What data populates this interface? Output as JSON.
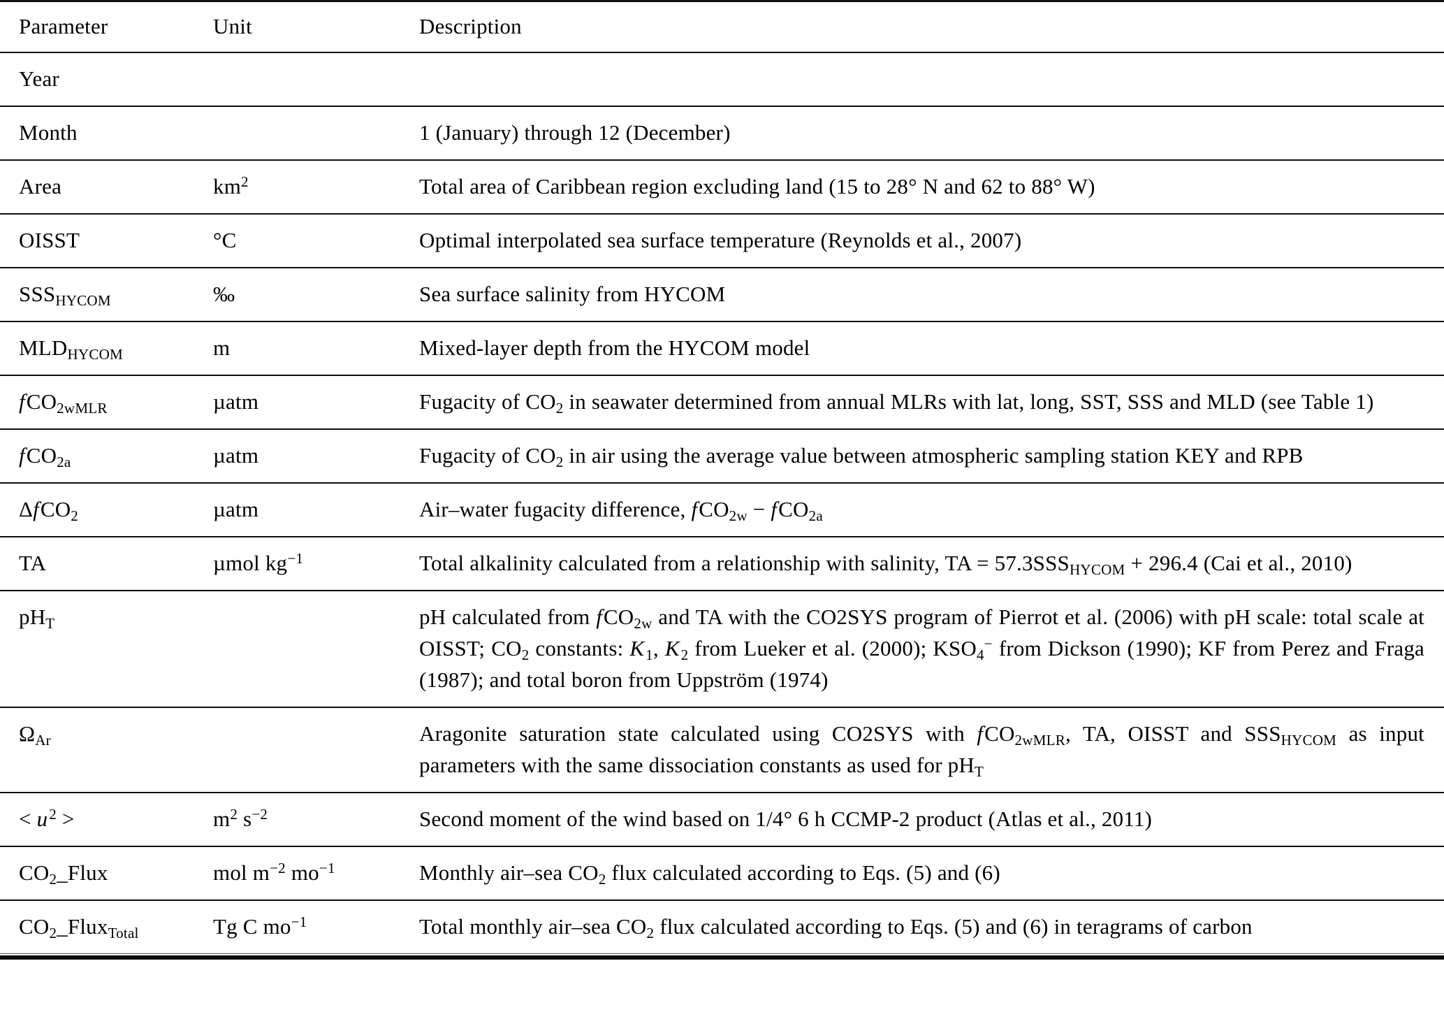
{
  "table": {
    "columns": [
      "Parameter",
      "Unit",
      "Description"
    ],
    "rows": [
      {
        "param": "Year",
        "unit": "",
        "desc": ""
      },
      {
        "param": "Month",
        "unit": "",
        "desc": "1 (January) through 12 (December)"
      },
      {
        "param": "Area",
        "unit": "km<sup>2</sup>",
        "desc": "Total area of Caribbean region excluding land (15 to 28° N and 62 to 88° W)"
      },
      {
        "param": "OISST",
        "unit": "°C",
        "desc": "Optimal interpolated sea surface temperature (Reynolds et al., 2007)"
      },
      {
        "param": "SSS<sub>HYCOM</sub>",
        "unit": "‰",
        "desc": "Sea surface salinity from HYCOM"
      },
      {
        "param": "MLD<sub>HYCOM</sub>",
        "unit": "m",
        "desc": "Mixed-layer depth from the HYCOM model"
      },
      {
        "param": "<i>f</i>CO<sub>2wMLR</sub>",
        "unit": "µatm",
        "desc": "Fugacity of CO<sub>2</sub> in seawater determined from annual MLRs with lat, long, SST, SSS and MLD (see Table 1)"
      },
      {
        "param": "<i>f</i>CO<sub>2a</sub>",
        "unit": "µatm",
        "desc": "Fugacity of CO<sub>2</sub> in air using the average value between atmospheric sampling station KEY and RPB"
      },
      {
        "param": "Δ<i>f</i>CO<sub>2</sub>",
        "unit": "µatm",
        "desc": "Air–water fugacity difference, <i>f</i>CO<sub>2w</sub> − <i>f</i>CO<sub>2a</sub>"
      },
      {
        "param": "TA",
        "unit": "µmol kg<sup>−1</sup>",
        "desc": "Total alkalinity calculated from a relationship with salinity, TA = 57.3SSS<sub>HYCOM</sub> + 296.4 (Cai et al., 2010)"
      },
      {
        "param": "pH<sub>T</sub>",
        "unit": "",
        "desc": "pH calculated from <i>f</i>CO<sub>2w</sub> and TA with the CO2SYS program of Pierrot et al. (2006) with pH scale: total scale at OISST; CO<sub>2</sub> constants: <i>K</i><sub>1</sub>, <i>K</i><sub>2</sub> from Lueker et al. (2000); KSO<sub>4</sub><sup>−</sup> from Dickson (1990); KF from Perez and Fraga (1987); and total boron from Uppström (1974)"
      },
      {
        "param": "Ω<sub>Ar</sub>",
        "unit": "",
        "desc": "Aragonite saturation state calculated using CO2SYS with <i>f</i>CO<sub>2wMLR</sub>, TA, OISST and SSS<sub>HYCOM</sub> as input parameters with the same dissociation constants as used for pH<sub>T</sub>"
      },
      {
        "param": "&lt; <i>u</i><sup>2</sup> &gt;",
        "unit": "m<sup>2</sup> s<sup>−2</sup>",
        "desc": "Second moment of the wind based on 1/4° 6 h CCMP-2 product (Atlas et al., 2011)"
      },
      {
        "param": "CO<sub>2</sub>_Flux",
        "unit": "mol m<sup>−2</sup> mo<sup>−1</sup>",
        "desc": "Monthly air–sea CO<sub>2</sub> flux calculated according to Eqs. (5) and (6)"
      },
      {
        "param": "CO<sub>2</sub>_Flux<sub>Total</sub>",
        "unit": "Tg C mo<sup>−1</sup>",
        "desc": "Total monthly air–sea CO<sub>2</sub> flux calculated according to Eqs. (5) and (6) in teragrams of carbon"
      }
    ]
  }
}
